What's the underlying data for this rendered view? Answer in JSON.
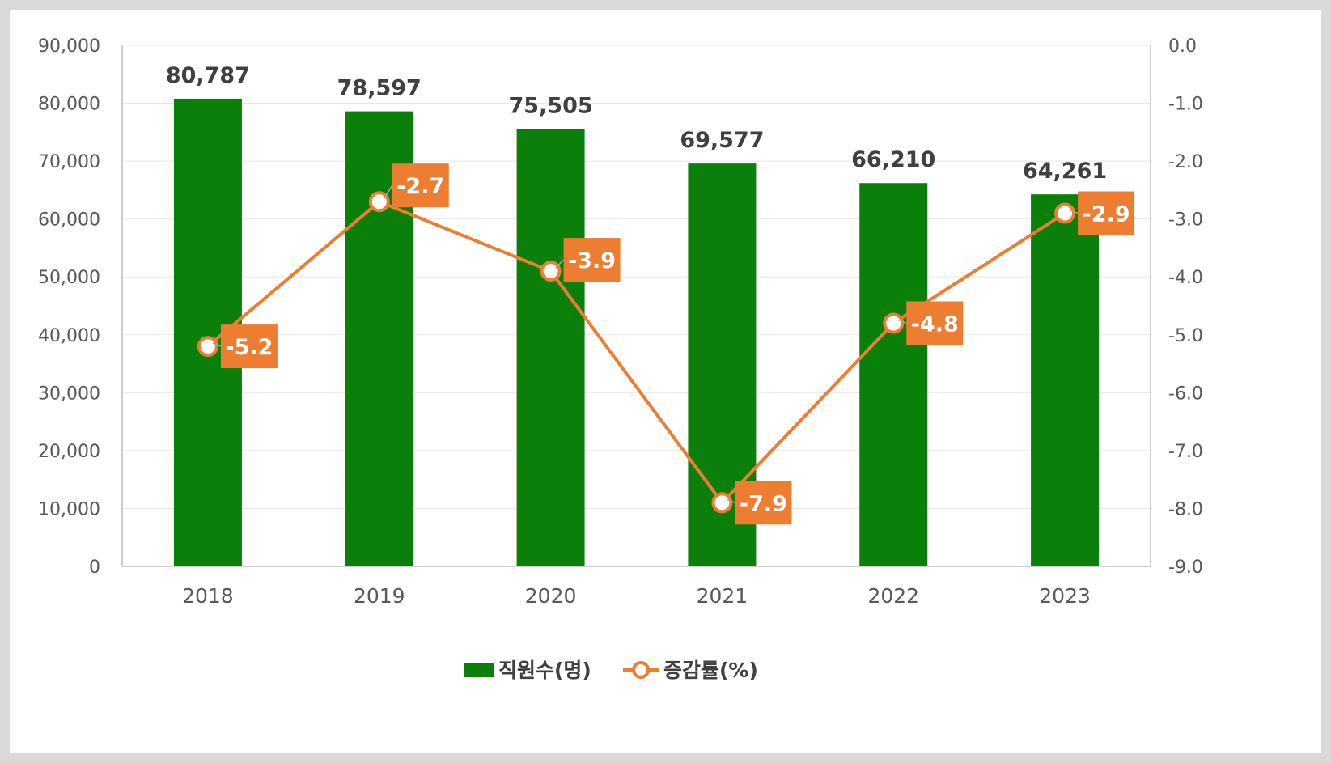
{
  "colors": {
    "bar": "#0a7f0a",
    "line": "#ed7d31",
    "grid": "#e8e8e8",
    "axis": "#bfbfbf"
  },
  "chart_data": {
    "type": "bar",
    "categories": [
      "2018",
      "2019",
      "2020",
      "2021",
      "2022",
      "2023"
    ],
    "series": [
      {
        "name": "직원수(명)",
        "type": "bar",
        "axis": "left",
        "values": [
          80787,
          78597,
          75505,
          69577,
          66210,
          64261
        ],
        "labels": [
          "80,787",
          "78,597",
          "75,505",
          "69,577",
          "66,210",
          "64,261"
        ]
      },
      {
        "name": "증감률(%)",
        "type": "line",
        "axis": "right",
        "values": [
          -5.2,
          -2.7,
          -3.9,
          -7.9,
          -4.8,
          -2.9
        ],
        "labels": [
          "-5.2",
          "-2.7",
          "-3.9",
          "-7.9",
          "-4.8",
          "-2.9"
        ]
      }
    ],
    "y_left": {
      "range": [
        0,
        90000
      ],
      "ticks": [
        "0",
        "10,000",
        "20,000",
        "30,000",
        "40,000",
        "50,000",
        "60,000",
        "70,000",
        "80,000",
        "90,000"
      ]
    },
    "y_right": {
      "range": [
        -9.0,
        0.0
      ],
      "ticks": [
        "-9.0",
        "-8.0",
        "-7.0",
        "-6.0",
        "-5.0",
        "-4.0",
        "-3.0",
        "-2.0",
        "-1.0",
        "0.0"
      ]
    },
    "grid": true,
    "legend": {
      "position": "bottom",
      "items": [
        "직원수(명)",
        "증감률(%)"
      ]
    }
  }
}
